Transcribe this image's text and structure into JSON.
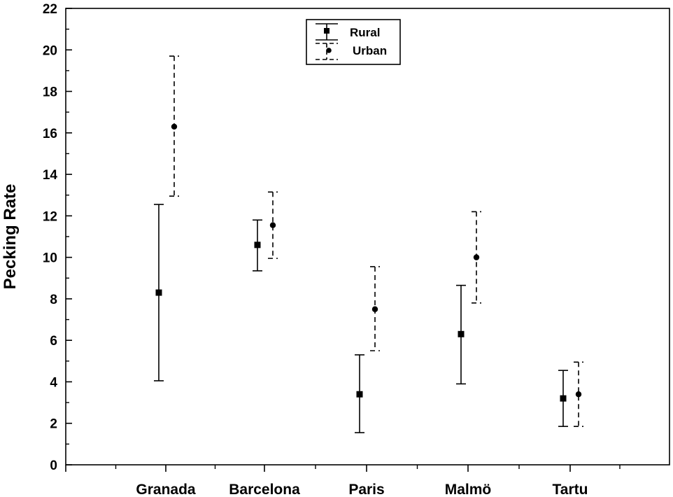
{
  "chart_data": {
    "type": "scatter",
    "title": "",
    "xlabel": "",
    "ylabel": "Pecking Rate",
    "ylim": [
      0,
      22
    ],
    "yticks": [
      "0",
      "2",
      "4",
      "6",
      "8",
      "10",
      "12",
      "14",
      "16",
      "18",
      "20",
      "22"
    ],
    "categories": [
      "Granada",
      "Barcelona",
      "Paris",
      "Malmö",
      "Tartu"
    ],
    "grid": false,
    "legend_position": "top-center",
    "series": [
      {
        "name": "Rural",
        "marker": "square",
        "line_style": "solid",
        "values": [
          8.3,
          10.6,
          3.4,
          6.3,
          3.2
        ],
        "lower": [
          4.05,
          9.35,
          1.55,
          3.9,
          1.85
        ],
        "upper": [
          12.55,
          11.8,
          5.3,
          8.65,
          4.55
        ]
      },
      {
        "name": "Urban",
        "marker": "circle",
        "line_style": "dashed",
        "values": [
          16.3,
          11.55,
          7.5,
          10.0,
          3.4
        ],
        "lower": [
          12.95,
          9.95,
          5.5,
          7.8,
          1.85
        ],
        "upper": [
          19.7,
          13.15,
          9.55,
          12.2,
          4.95
        ]
      }
    ]
  }
}
